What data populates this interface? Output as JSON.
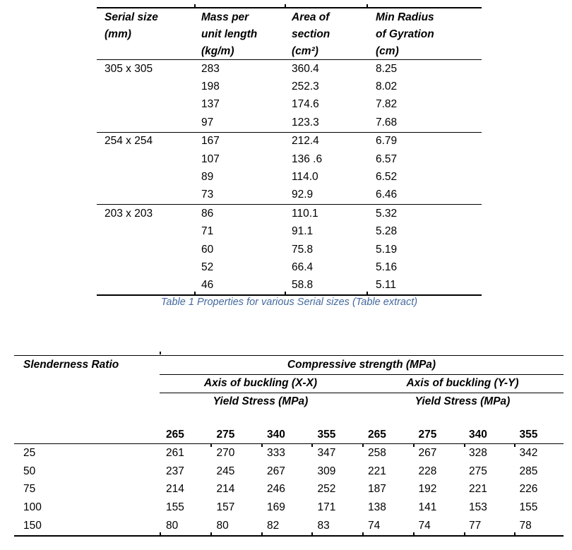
{
  "table1": {
    "headers": [
      {
        "lines": [
          "Serial size",
          "(mm)"
        ]
      },
      {
        "lines": [
          "Mass per",
          "unit length",
          "(kg/m)"
        ]
      },
      {
        "lines": [
          "Area of",
          "section",
          "(cm²)"
        ]
      },
      {
        "lines": [
          "Min Radius",
          "of Gyration",
          "(cm)"
        ]
      }
    ],
    "groups": [
      {
        "serial": "305 x 305",
        "rows": [
          [
            "283",
            "360.4",
            "8.25"
          ],
          [
            "198",
            "252.3",
            "8.02"
          ],
          [
            "137",
            "174.6",
            "7.82"
          ],
          [
            "97",
            "123.3",
            "7.68"
          ]
        ]
      },
      {
        "serial": "254 x 254",
        "rows": [
          [
            "167",
            "212.4",
            "6.79"
          ],
          [
            "107",
            "136 .6",
            "6.57"
          ],
          [
            "89",
            "114.0",
            "6.52"
          ],
          [
            "73",
            "92.9",
            "6.46"
          ]
        ]
      },
      {
        "serial": "203 x 203",
        "rows": [
          [
            "86",
            "110.1",
            "5.32"
          ],
          [
            "71",
            "91.1",
            "5.28"
          ],
          [
            "60",
            "75.8",
            "5.19"
          ],
          [
            "52",
            "66.4",
            "5.16"
          ],
          [
            "46",
            "58.8",
            "5.11"
          ]
        ]
      }
    ],
    "caption": "Table 1 Properties for various Serial sizes (Table extract)",
    "caption_color": "#44699E"
  },
  "table2": {
    "row_header": "Slenderness Ratio",
    "span_header": "Compressive strength (MPa)",
    "axis_headers": [
      "Axis of buckling (X-X)",
      "Axis of buckling (Y-Y)"
    ],
    "yield_headers": [
      "Yield Stress (MPa)",
      "Yield Stress (MPa)"
    ],
    "yield_values": [
      "265",
      "275",
      "340",
      "355",
      "265",
      "275",
      "340",
      "355"
    ],
    "rows": [
      [
        "25",
        "261",
        "270",
        "333",
        "347",
        "258",
        "267",
        "328",
        "342"
      ],
      [
        "50",
        "237",
        "245",
        "267",
        "309",
        "221",
        "228",
        "275",
        "285"
      ],
      [
        "75",
        "214",
        "214",
        "246",
        "252",
        "187",
        "192",
        "221",
        "226"
      ],
      [
        "100",
        "155",
        "157",
        "169",
        "171",
        "138",
        "141",
        "153",
        "155"
      ],
      [
        "150",
        "80",
        "80",
        "82",
        "83",
        "74",
        "74",
        "77",
        "78"
      ]
    ]
  }
}
